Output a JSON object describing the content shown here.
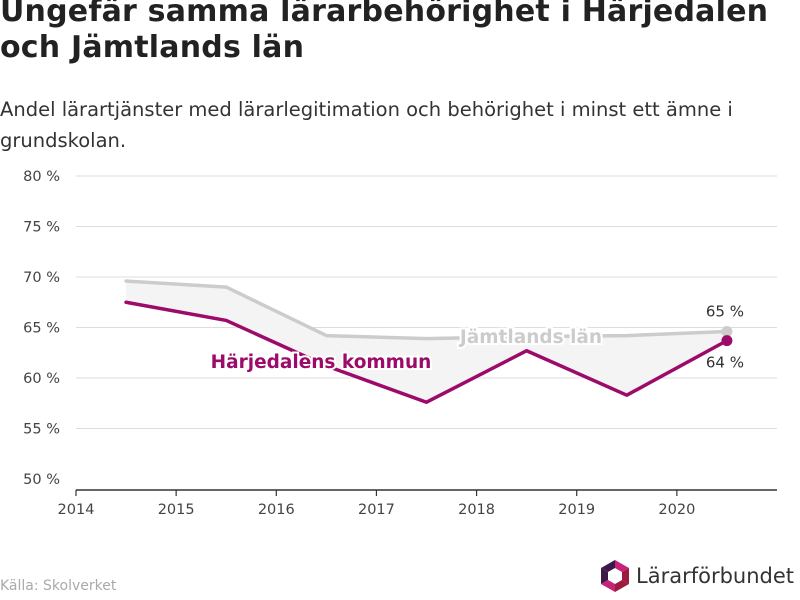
{
  "header": {
    "title": "Ungefär samma lärarbehörighet i Härjedalen och Jämtlands län",
    "subtitle": "Andel lärartjänster med lärarlegitimation och behörighet i minst ett ämne i grundskolan."
  },
  "footer": {
    "source": "Källa: Skolverket",
    "brand": "Lärarförbundet"
  },
  "colors": {
    "harjedalen": "#9c0b6a",
    "jamtland": "#cccccc",
    "band": "#f4f4f4",
    "grid": "#dddddd",
    "logo_pink": "#c8237a",
    "logo_red": "#9c1b3f",
    "logo_dark": "#3b1a4a"
  },
  "chart_data": {
    "type": "line",
    "x_ticks": [
      "2014",
      "2015",
      "2016",
      "2017",
      "2018",
      "2019",
      "2020"
    ],
    "y_ticks": [
      "50 %",
      "55 %",
      "60 %",
      "65 %",
      "70 %",
      "75 %",
      "80 %"
    ],
    "xlim": [
      2014,
      2021
    ],
    "ylim": [
      50,
      80
    ],
    "grid": true,
    "series": [
      {
        "name": "Jämtlands län",
        "x": [
          2014.5,
          2015.5,
          2016.5,
          2017.5,
          2018.5,
          2019.5,
          2020.5
        ],
        "y": [
          69.6,
          69.0,
          64.2,
          63.9,
          64.1,
          64.2,
          64.6
        ],
        "end_label": "65 %"
      },
      {
        "name": "Härjedalens kommun",
        "x": [
          2014.5,
          2015.5,
          2016.5,
          2017.5,
          2018.5,
          2019.5,
          2020.5
        ],
        "y": [
          67.5,
          65.7,
          61.2,
          57.6,
          62.7,
          58.3,
          63.7
        ],
        "end_label": "64 %"
      }
    ]
  }
}
